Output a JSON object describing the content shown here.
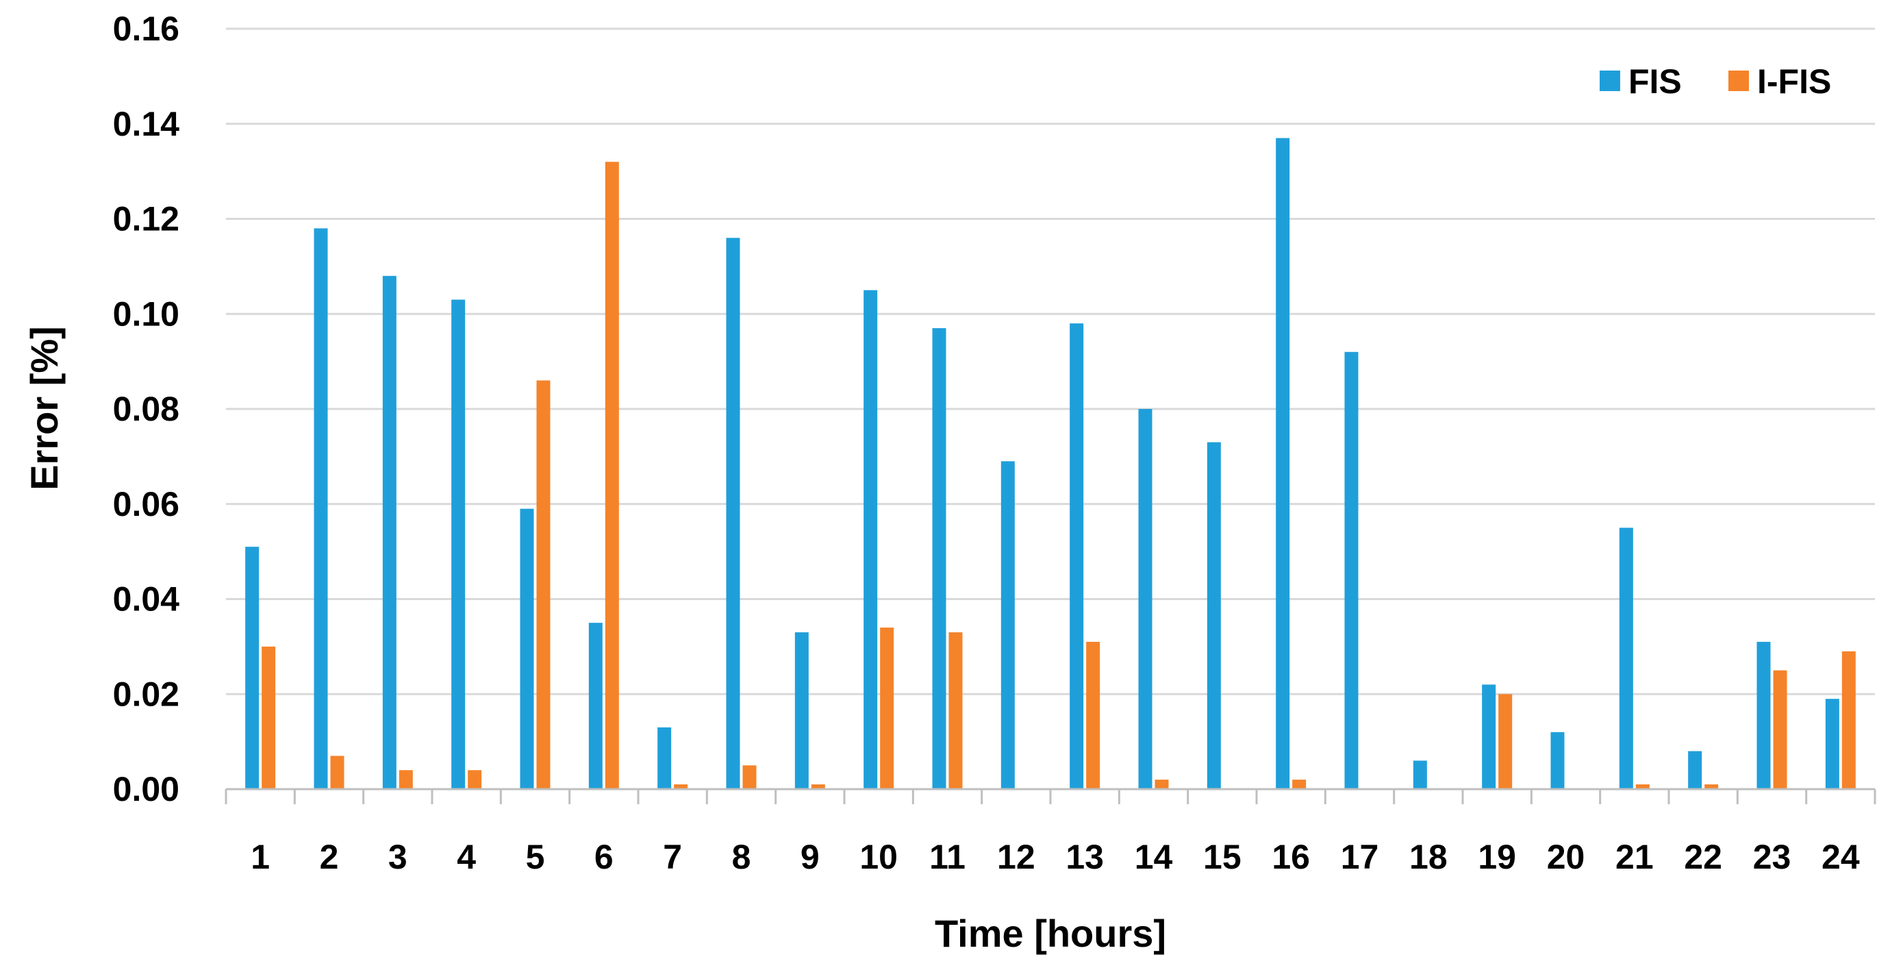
{
  "chart_data": {
    "type": "bar",
    "title": "",
    "xlabel": "Time [hours]",
    "ylabel": "Error [%]",
    "ylim": [
      0,
      0.16
    ],
    "yticks": [
      "0.00",
      "0.02",
      "0.04",
      "0.06",
      "0.08",
      "0.10",
      "0.12",
      "0.14",
      "0.16"
    ],
    "grid": "horizontal",
    "legend_position": "top-right",
    "categories": [
      "1",
      "2",
      "3",
      "4",
      "5",
      "6",
      "7",
      "8",
      "9",
      "10",
      "11",
      "12",
      "13",
      "14",
      "15",
      "16",
      "17",
      "18",
      "19",
      "20",
      "21",
      "22",
      "23",
      "24"
    ],
    "series": [
      {
        "name": "FIS",
        "color": "#1f9fda",
        "values": [
          0.051,
          0.118,
          0.108,
          0.103,
          0.059,
          0.035,
          0.013,
          0.116,
          0.033,
          0.105,
          0.097,
          0.069,
          0.098,
          0.08,
          0.073,
          0.137,
          0.092,
          0.006,
          0.022,
          0.012,
          0.055,
          0.008,
          0.031,
          0.019
        ]
      },
      {
        "name": "I-FIS",
        "color": "#f5832a",
        "values": [
          0.03,
          0.007,
          0.004,
          0.004,
          0.086,
          0.132,
          0.001,
          0.005,
          0.001,
          0.034,
          0.033,
          0.0,
          0.031,
          0.002,
          0.0,
          0.002,
          0.0,
          0.0,
          0.02,
          0.0,
          0.001,
          0.001,
          0.025,
          0.029
        ]
      }
    ]
  }
}
